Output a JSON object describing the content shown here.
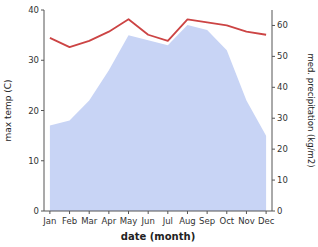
{
  "chart_data": {
    "type": "line",
    "categories": [
      "Jan",
      "Feb",
      "Mar",
      "Apr",
      "May",
      "Jun",
      "Jul",
      "Aug",
      "Sep",
      "Oct",
      "Nov",
      "Dec"
    ],
    "series": [
      {
        "type": "area",
        "color": "#c8d4f5",
        "values": [
          17,
          18,
          22,
          28,
          35,
          34,
          33,
          37,
          36,
          32,
          22,
          15
        ]
      },
      {
        "type": "line",
        "color": "#cc4444",
        "axis": "y2",
        "values": [
          56,
          53,
          55,
          58,
          62,
          57,
          55,
          62,
          61,
          60,
          58,
          57
        ]
      }
    ],
    "xlabel": "date (month)",
    "ylabel": "max temp (C)",
    "y2label": "med. precipitation (kg/m2)",
    "ylim": [
      0,
      40
    ],
    "yticks": [
      0,
      10,
      20,
      30,
      40
    ],
    "y2lim": [
      0,
      65
    ],
    "y2ticks": [
      0,
      10,
      20,
      30,
      40,
      50,
      60
    ],
    "grid": false
  }
}
